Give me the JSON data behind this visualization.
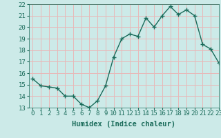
{
  "x": [
    0,
    1,
    2,
    3,
    4,
    5,
    6,
    7,
    8,
    9,
    10,
    11,
    12,
    13,
    14,
    15,
    16,
    17,
    18,
    19,
    20,
    21,
    22,
    23
  ],
  "y": [
    15.5,
    14.9,
    14.8,
    14.7,
    14.0,
    14.0,
    13.3,
    13.0,
    13.6,
    14.9,
    17.4,
    19.0,
    19.4,
    19.2,
    20.8,
    20.0,
    21.0,
    21.8,
    21.1,
    21.5,
    21.0,
    18.5,
    18.1,
    16.9
  ],
  "line_color": "#1a6b5a",
  "marker": "+",
  "marker_size": 4,
  "marker_lw": 1.0,
  "bg_color": "#cceae8",
  "grid_color": "#e8b8b8",
  "xlabel": "Humidex (Indice chaleur)",
  "ylim": [
    13,
    22
  ],
  "xlim": [
    -0.5,
    23
  ],
  "yticks": [
    13,
    14,
    15,
    16,
    17,
    18,
    19,
    20,
    21,
    22
  ],
  "xticks": [
    0,
    1,
    2,
    3,
    4,
    5,
    6,
    7,
    8,
    9,
    10,
    11,
    12,
    13,
    14,
    15,
    16,
    17,
    18,
    19,
    20,
    21,
    22,
    23
  ],
  "xlabel_fontsize": 7.5,
  "tick_fontsize": 6.5,
  "tick_color": "#1a6b5a",
  "line_width": 1.0
}
